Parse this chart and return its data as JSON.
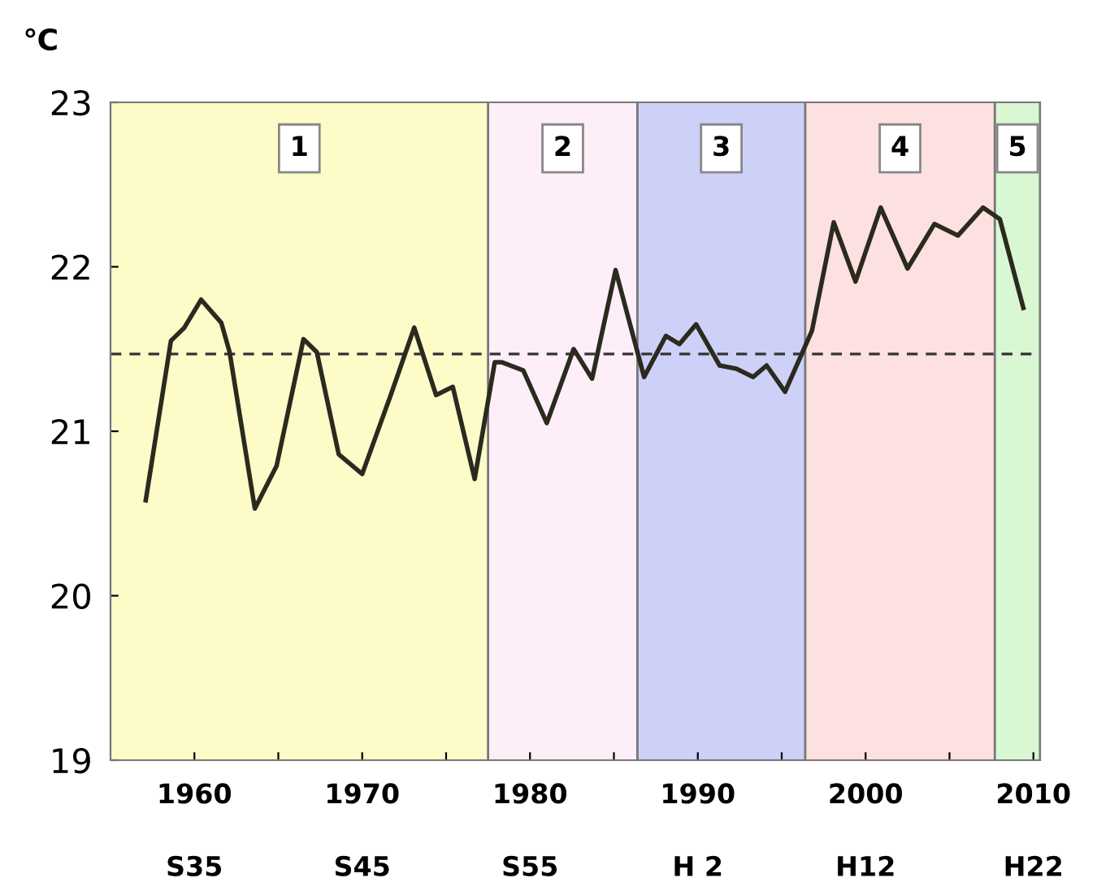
{
  "chart_data": {
    "type": "line",
    "ylabel": "℃",
    "x": [
      1957.1,
      1958.6,
      1959.4,
      1960.4,
      1961.6,
      1962.1,
      1963.6,
      1964.9,
      1966.5,
      1967.3,
      1968.6,
      1970.0,
      1971.7,
      1973.1,
      1974.4,
      1975.4,
      1976.7,
      1977.9,
      1978.3,
      1979.6,
      1981.0,
      1982.6,
      1983.7,
      1985.1,
      1986.8,
      1988.1,
      1988.9,
      1989.9,
      1991.3,
      1992.3,
      1993.3,
      1994.1,
      1995.2,
      1996.8,
      1998.1,
      1999.4,
      2000.9,
      2002.5,
      2004.1,
      2005.5,
      2007.0,
      2008.0,
      2009.4
    ],
    "series": [
      {
        "color": "#2a2a1e",
        "values": [
          20.58,
          21.55,
          21.63,
          21.8,
          21.66,
          21.48,
          20.53,
          20.79,
          21.56,
          21.48,
          20.86,
          20.74,
          21.22,
          21.63,
          21.22,
          21.27,
          20.71,
          21.42,
          21.42,
          21.37,
          21.05,
          21.5,
          21.32,
          21.98,
          21.33,
          21.58,
          21.53,
          21.65,
          21.4,
          21.38,
          21.33,
          21.4,
          21.24,
          21.61,
          22.27,
          21.91,
          22.36,
          21.99,
          22.26,
          22.19,
          22.36,
          22.29,
          21.75
        ]
      }
    ],
    "xlim": [
      1955,
      2010.4
    ],
    "xticks": [
      1960,
      {
        "value": 1965,
        "label": null
      },
      1970,
      {
        "value": 1975,
        "label": null
      },
      1980,
      {
        "value": 1985,
        "label": null
      },
      1990,
      {
        "value": 1995,
        "label": null
      },
      2000,
      {
        "value": 2005,
        "label": null
      },
      2010
    ],
    "annotations": [
      "S35",
      "S45",
      "S55",
      "H 2",
      "H12",
      "H22"
    ],
    "ylim": [
      19,
      23
    ],
    "yticks": [
      19,
      20,
      21,
      22,
      23
    ],
    "ref_lines": [
      {
        "axis": "y",
        "value": 21.47,
        "color": "#333333",
        "line_style": "dashed"
      }
    ],
    "bands": [
      {
        "axis": "x",
        "from": 1955,
        "to": 1977.5,
        "label": "1",
        "color": "#fdfbc8"
      },
      {
        "axis": "x",
        "from": 1977.5,
        "to": 1986.4,
        "label": "2",
        "color": "#fdeef8"
      },
      {
        "axis": "x",
        "from": 1986.4,
        "to": 1996.4,
        "label": "3",
        "color": "#cdd0f7"
      },
      {
        "axis": "x",
        "from": 1996.4,
        "to": 2007.7,
        "label": "4",
        "color": "#fde0e0"
      },
      {
        "axis": "x",
        "from": 2007.7,
        "to": 2010.4,
        "label": "5",
        "color": "#d9f7d3"
      }
    ],
    "grid": false,
    "legend": false,
    "marker": "none",
    "line_style": "solid"
  }
}
